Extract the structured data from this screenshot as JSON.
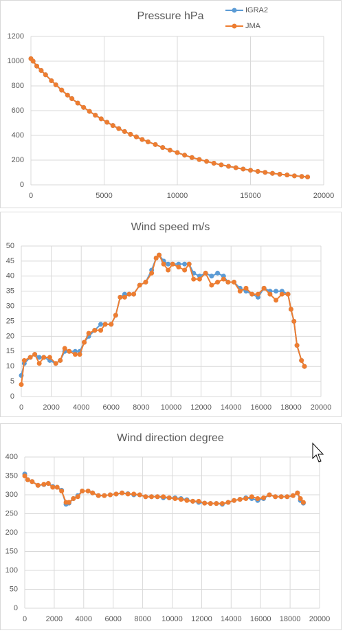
{
  "chart_data": [
    {
      "type": "line",
      "title": "Pressure hPa",
      "x": [
        0,
        150,
        400,
        700,
        1000,
        1400,
        1700,
        2100,
        2500,
        2800,
        3200,
        3600,
        4000,
        4400,
        4800,
        5200,
        5600,
        6000,
        6400,
        6800,
        7200,
        7600,
        8000,
        8500,
        9000,
        9500,
        10000,
        10500,
        11000,
        11500,
        12000,
        12500,
        13000,
        13500,
        14000,
        14500,
        15000,
        15500,
        16000,
        16500,
        17000,
        17500,
        18000,
        18500,
        18900
      ],
      "series": [
        {
          "name": "IGRA2",
          "color": "#5b9bd5",
          "values": [
            1020,
            1000,
            960,
            925,
            890,
            842,
            809,
            766,
            726,
            697,
            661,
            626,
            594,
            563,
            534,
            506,
            480,
            455,
            431,
            409,
            388,
            367,
            348,
            326,
            302,
            281,
            261,
            240,
            221,
            205,
            190,
            175,
            162,
            150,
            139,
            128,
            118,
            109,
            101,
            93,
            86,
            80,
            73,
            68,
            64
          ]
        },
        {
          "name": "JMA",
          "color": "#ed7d31",
          "values": [
            1020,
            1000,
            960,
            925,
            890,
            842,
            809,
            766,
            726,
            697,
            661,
            626,
            594,
            563,
            534,
            506,
            480,
            455,
            431,
            409,
            388,
            367,
            348,
            326,
            302,
            281,
            261,
            240,
            221,
            205,
            190,
            175,
            162,
            150,
            139,
            128,
            118,
            109,
            101,
            93,
            86,
            80,
            73,
            68,
            64
          ]
        }
      ],
      "xlim": [
        0,
        20000
      ],
      "xticks": [
        0,
        5000,
        10000,
        15000,
        20000
      ],
      "ylim": [
        0,
        1200
      ],
      "yticks": [
        0,
        200,
        400,
        600,
        800,
        1000,
        1200
      ],
      "grid": true,
      "legend": "top-right"
    },
    {
      "type": "line",
      "title": "Wind speed m/s",
      "x": [
        0,
        200,
        600,
        900,
        1200,
        1500,
        1900,
        2300,
        2600,
        2900,
        3200,
        3600,
        3900,
        4200,
        4500,
        4900,
        5300,
        5600,
        6000,
        6300,
        6600,
        6900,
        7200,
        7500,
        7900,
        8300,
        8700,
        9000,
        9200,
        9500,
        9800,
        10100,
        10500,
        10900,
        11200,
        11500,
        11900,
        12300,
        12700,
        13100,
        13500,
        13800,
        14200,
        14600,
        15000,
        15400,
        15800,
        16200,
        16600,
        17000,
        17400,
        17800,
        18000,
        18200,
        18400,
        18700,
        18900
      ],
      "series": [
        {
          "color": "#5b9bd5",
          "values": [
            7,
            11,
            13,
            14,
            13,
            13,
            12,
            11,
            12,
            15,
            15,
            15,
            15,
            18,
            20,
            22,
            24,
            24,
            24,
            27,
            33,
            34,
            34,
            34,
            37,
            38,
            42,
            46,
            47,
            45,
            44,
            44,
            44,
            44,
            44,
            41,
            40,
            41,
            40,
            41,
            40,
            38,
            38,
            36,
            35,
            34,
            33,
            36,
            35,
            35,
            35,
            34,
            29,
            25,
            17,
            12,
            10
          ]
        },
        {
          "color": "#ed7d31",
          "values": [
            4,
            12,
            13,
            14,
            11,
            13,
            13,
            11,
            12,
            16,
            15,
            14,
            14,
            18,
            21,
            22,
            22,
            24,
            24,
            27,
            33,
            33,
            34,
            34,
            37,
            38,
            41,
            46,
            47,
            44,
            42,
            44,
            43,
            42,
            44,
            39,
            39,
            41,
            37,
            38,
            39,
            38,
            38,
            35,
            36,
            34,
            34,
            36,
            34,
            32,
            34,
            34,
            29,
            25,
            17,
            12,
            10
          ]
        }
      ],
      "xlim": [
        0,
        20000
      ],
      "xticks": [
        0,
        2000,
        4000,
        6000,
        8000,
        10000,
        12000,
        14000,
        16000,
        18000,
        20000
      ],
      "ylim": [
        0,
        50
      ],
      "yticks": [
        0,
        5,
        10,
        15,
        20,
        25,
        30,
        35,
        40,
        45,
        50
      ],
      "grid": true
    },
    {
      "type": "line",
      "title": "Wind direction degree",
      "x": [
        0,
        200,
        500,
        900,
        1300,
        1600,
        1900,
        2200,
        2500,
        2800,
        3000,
        3300,
        3600,
        3900,
        4300,
        4600,
        5000,
        5400,
        5800,
        6200,
        6600,
        7000,
        7400,
        7800,
        8200,
        8600,
        9000,
        9400,
        9800,
        10200,
        10600,
        11000,
        11400,
        11800,
        12200,
        12600,
        13000,
        13400,
        13800,
        14200,
        14600,
        15000,
        15400,
        15800,
        16200,
        16600,
        17000,
        17400,
        17800,
        18200,
        18500,
        18700,
        18900
      ],
      "series": [
        {
          "color": "#5b9bd5",
          "values": [
            355,
            340,
            335,
            325,
            327,
            330,
            322,
            320,
            312,
            275,
            278,
            290,
            298,
            310,
            310,
            305,
            298,
            298,
            300,
            302,
            305,
            303,
            300,
            300,
            295,
            295,
            295,
            292,
            292,
            292,
            290,
            287,
            283,
            280,
            278,
            277,
            277,
            275,
            280,
            285,
            288,
            292,
            290,
            285,
            290,
            300,
            295,
            295,
            295,
            298,
            305,
            285,
            278
          ]
        },
        {
          "color": "#ed7d31",
          "values": [
            350,
            340,
            335,
            325,
            328,
            330,
            320,
            320,
            310,
            280,
            280,
            290,
            295,
            310,
            310,
            305,
            298,
            298,
            300,
            302,
            305,
            302,
            302,
            300,
            295,
            295,
            295,
            295,
            292,
            290,
            288,
            285,
            283,
            283,
            278,
            277,
            277,
            277,
            280,
            285,
            288,
            290,
            295,
            290,
            292,
            300,
            295,
            295,
            295,
            298,
            305,
            290,
            280
          ]
        }
      ],
      "xlim": [
        0,
        20000
      ],
      "xticks": [
        0,
        2000,
        4000,
        6000,
        8000,
        10000,
        12000,
        14000,
        16000,
        18000,
        20000
      ],
      "ylim": [
        0,
        400
      ],
      "yticks": [
        0,
        50,
        100,
        150,
        200,
        250,
        300,
        350,
        400
      ],
      "grid": true
    }
  ]
}
